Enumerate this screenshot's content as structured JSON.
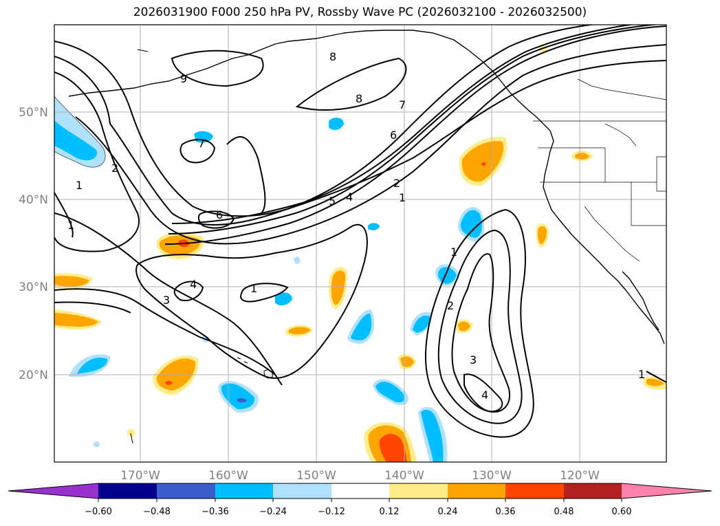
{
  "title": "2026031900 F000 250 hPa PV, Rossby Wave PC (2026032100 - 2026032500)",
  "map": {
    "lat_labels": [
      "50°N",
      "40°N",
      "30°N",
      "20°N"
    ],
    "lon_labels": [
      "170°W",
      "160°W",
      "150°W",
      "140°W",
      "130°W",
      "120°W"
    ],
    "contour_labels": [
      "8",
      "8",
      "9",
      "7",
      "6",
      "7",
      "6",
      "5",
      "4",
      "2",
      "1",
      "2",
      "1",
      "1",
      "4",
      "3",
      "1",
      "1",
      "2",
      "3",
      "4",
      "1"
    ]
  },
  "colors": {
    "neg_strong": "#9932cc",
    "neg_060": "#00008b",
    "neg_048": "#3a5fcd",
    "neg_036": "#00bfff",
    "neg_024": "#b0e2ff",
    "neutral": "#ffffff",
    "pos_012": "#ffec8b",
    "pos_024": "#ffa500",
    "pos_036": "#ff4500",
    "pos_048": "#b22222",
    "pos_060": "#ff82ab"
  },
  "colorbar": {
    "ticks": [
      "−0.60",
      "−0.48",
      "−0.36",
      "−0.24",
      "−0.12",
      "0.12",
      "0.24",
      "0.36",
      "0.48",
      "0.60"
    ]
  }
}
